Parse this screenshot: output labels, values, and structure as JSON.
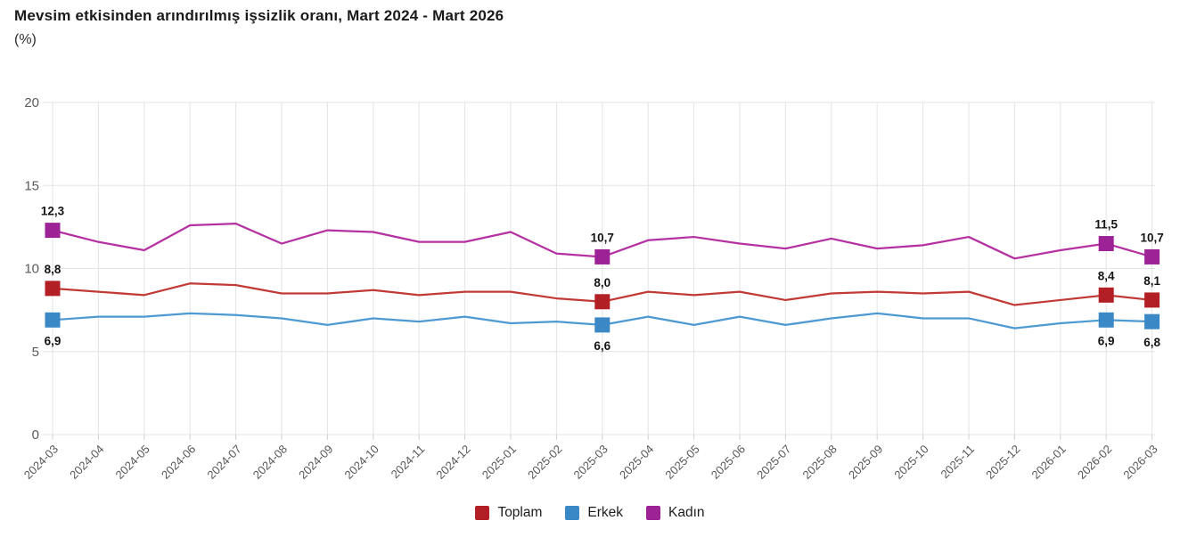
{
  "chart_data": {
    "type": "line",
    "title": "Mevsim etkisinden arındırılmış işsizlik oranı, Mart 2024 - Mart 2026",
    "subtitle": "(%)",
    "xlabel": "",
    "ylabel": "",
    "ylim": [
      0,
      20
    ],
    "yticks": [
      0,
      5,
      10,
      15,
      20
    ],
    "grid": true,
    "legend_position": "bottom",
    "decimal_separator": ",",
    "categories": [
      "2024-03",
      "2024-04",
      "2024-05",
      "2024-06",
      "2024-07",
      "2024-08",
      "2024-09",
      "2024-10",
      "2024-11",
      "2024-12",
      "2025-01",
      "2025-02",
      "2025-03",
      "2025-04",
      "2025-05",
      "2025-06",
      "2025-07",
      "2025-08",
      "2025-09",
      "2025-10",
      "2025-11",
      "2025-12",
      "2026-01",
      "2026-02",
      "2026-03"
    ],
    "series": [
      {
        "name": "Toplam",
        "marker_color": "#b22025",
        "line_color": "#c23a35",
        "label_position": "above",
        "values": [
          8.8,
          8.6,
          8.4,
          9.1,
          9.0,
          8.5,
          8.5,
          8.7,
          8.4,
          8.6,
          8.6,
          8.2,
          8.0,
          8.6,
          8.4,
          8.6,
          8.1,
          8.5,
          8.6,
          8.5,
          8.6,
          7.8,
          8.1,
          8.4,
          8.1
        ],
        "point_labels": {
          "0": "8,8",
          "12": "8,0",
          "23": "8,4",
          "24": "8,1"
        }
      },
      {
        "name": "Erkek",
        "marker_color": "#3a89c6",
        "line_color": "#4d9ad3",
        "label_position": "below",
        "values": [
          6.9,
          7.1,
          7.1,
          7.3,
          7.2,
          7.0,
          6.6,
          7.0,
          6.8,
          7.1,
          6.7,
          6.8,
          6.6,
          7.1,
          6.6,
          7.1,
          6.6,
          7.0,
          7.3,
          7.0,
          7.0,
          6.4,
          6.7,
          6.9,
          6.8
        ],
        "point_labels": {
          "0": "6,9",
          "12": "6,6",
          "23": "6,9",
          "24": "6,8"
        }
      },
      {
        "name": "Kadın",
        "marker_color": "#9c2295",
        "line_color": "#b531a2",
        "label_position": "above",
        "values": [
          12.3,
          11.6,
          11.1,
          12.6,
          12.7,
          11.5,
          12.3,
          12.2,
          11.6,
          11.6,
          12.2,
          10.9,
          10.7,
          11.7,
          11.9,
          11.5,
          11.2,
          11.8,
          11.2,
          11.4,
          11.9,
          10.6,
          11.1,
          11.5,
          10.7
        ],
        "point_labels": {
          "0": "12,3",
          "12": "10,7",
          "23": "11,5",
          "24": "10,7"
        }
      }
    ],
    "style": {
      "background": "#ffffff",
      "grid_color": "#e3e3e3",
      "tick_color": "#cfcfcf",
      "axis_label_color": "#5a5a5c",
      "data_label_color": "#141414",
      "title_color": "#1a1a1a"
    }
  }
}
